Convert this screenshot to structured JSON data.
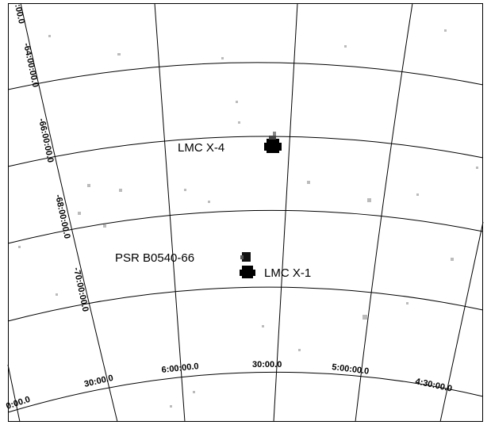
{
  "declination_labels": [
    ":00.0",
    "-64:00:00.0",
    "-66:00:00.0",
    "-68:00:00.0",
    "-70:00:00.0"
  ],
  "ra_labels": [
    "0:00.0",
    "30:00.0",
    "6:00:00.0",
    "30:00.0",
    "5:00:00.0",
    "4:30:00.0"
  ],
  "sources": {
    "lmc_x4": "LMC X-4",
    "psr": "PSR B0540-66",
    "lmc_x1": "LMC X-1"
  }
}
